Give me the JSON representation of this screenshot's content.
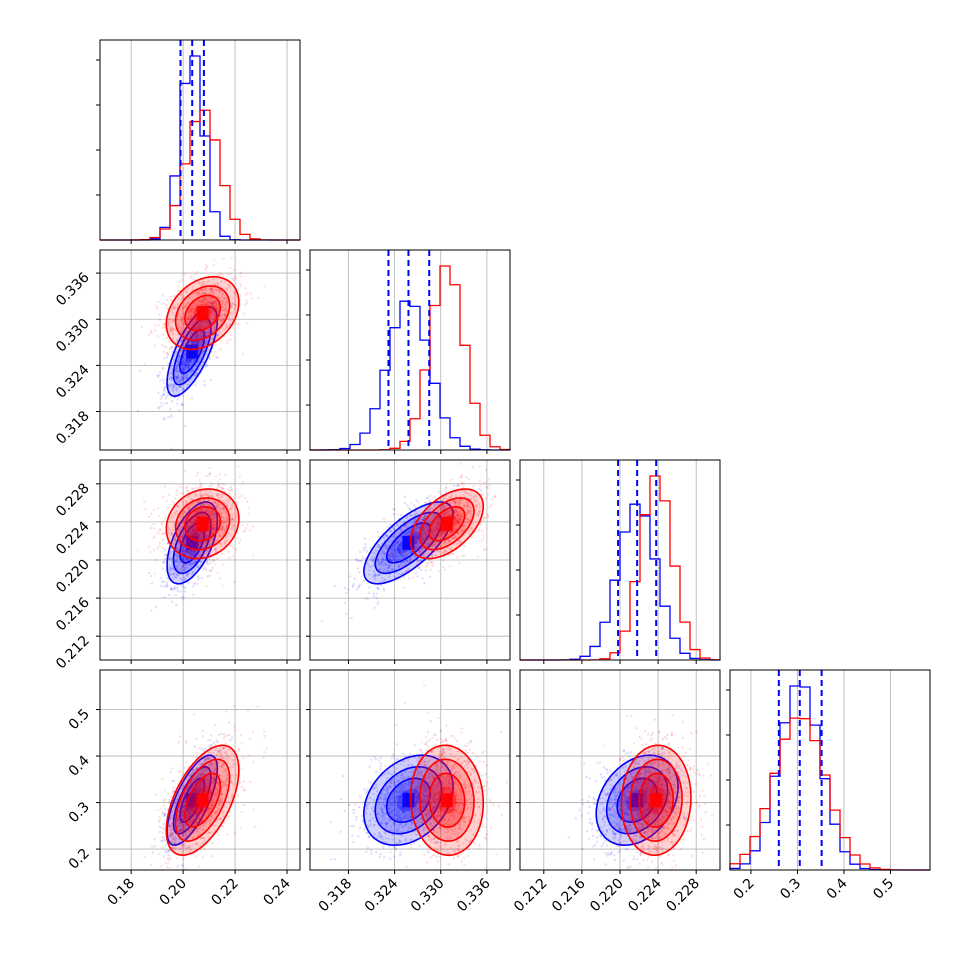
{
  "chart_data": {
    "type": "corner",
    "n_params": 4,
    "colors": {
      "blue": "#0000ff",
      "red": "#ff0000",
      "grid": "#b0b0b0",
      "axis": "#000000"
    },
    "series": [
      {
        "name": "blue",
        "color": "#0000ff",
        "mean": [
          0.2035,
          0.3258,
          0.2218,
          0.305
        ],
        "std": [
          0.0045,
          0.0027,
          0.002,
          0.045
        ],
        "quantiles": [
          [
            0.199,
            0.2035,
            0.208
          ],
          [
            0.3232,
            0.3258,
            0.3285
          ],
          [
            0.2198,
            0.2218,
            0.2238
          ],
          [
            0.26,
            0.305,
            0.352
          ]
        ],
        "corr": [
          [
            0,
            1,
            0.7
          ],
          [
            0,
            2,
            0.55
          ],
          [
            1,
            2,
            0.7
          ],
          [
            0,
            3,
            0.7
          ],
          [
            1,
            3,
            0.3
          ],
          [
            2,
            3,
            0.3
          ]
        ]
      },
      {
        "name": "red",
        "color": "#ff0000",
        "mean": [
          0.2075,
          0.3308,
          0.2238,
          0.305
        ],
        "std": [
          0.0065,
          0.0022,
          0.0017,
          0.055
        ],
        "corr": [
          [
            0,
            1,
            0.3
          ],
          [
            0,
            2,
            0.15
          ],
          [
            1,
            2,
            0.5
          ],
          [
            0,
            3,
            0.55
          ],
          [
            1,
            3,
            -0.05
          ],
          [
            2,
            3,
            0.05
          ]
        ]
      }
    ],
    "axes": [
      {
        "range": [
          0.168,
          0.245
        ],
        "ticks": [
          0.18,
          0.2,
          0.22,
          0.24
        ],
        "labels": [
          "0.18",
          "0.20",
          "0.22",
          "0.24"
        ]
      },
      {
        "range": [
          0.313,
          0.339
        ],
        "ticks": [
          0.318,
          0.324,
          0.33,
          0.336
        ],
        "labels": [
          "0.318",
          "0.324",
          "0.330",
          "0.336"
        ]
      },
      {
        "range": [
          0.2095,
          0.2305
        ],
        "ticks": [
          0.212,
          0.216,
          0.22,
          0.224,
          0.228
        ],
        "labels": [
          "0.212",
          "0.216",
          "0.220",
          "0.224",
          "0.228"
        ]
      },
      {
        "range": [
          0.155,
          0.585
        ],
        "ticks": [
          0.2,
          0.3,
          0.4,
          0.5
        ],
        "labels": [
          "0.2",
          "0.3",
          "0.4",
          "0.5"
        ]
      }
    ],
    "title": "",
    "legend": "none",
    "grid": true
  }
}
